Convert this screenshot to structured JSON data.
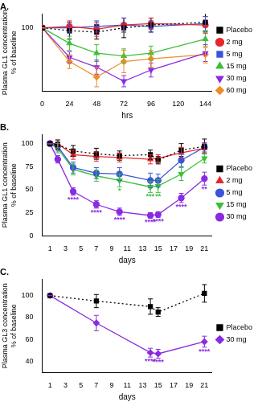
{
  "chart_data": [
    {
      "type": "line",
      "title": "A.",
      "x_label": "hrs",
      "y_label": [
        "Plasma GL1 concentration",
        "% of baseline"
      ],
      "x": [
        0,
        24,
        48,
        72,
        96,
        144
      ],
      "xlim": [
        0,
        150
      ],
      "xticks": [
        0,
        24,
        48,
        72,
        96,
        120,
        144
      ],
      "ylim": [
        55,
        110
      ],
      "yticks": [
        100
      ],
      "grid": false,
      "legend": "right",
      "series": [
        {
          "name": "Placebo",
          "color": "#000000",
          "marker": "square",
          "line_style": "dotted",
          "values": [
            100,
            98,
            97,
            100,
            102,
            104
          ],
          "errors": [
            0,
            6,
            5,
            7,
            5,
            7
          ]
        },
        {
          "name": "2 mg",
          "color": "#e8262c",
          "marker": "circle",
          "line_style": "solid",
          "values": [
            100,
            101,
            99,
            102,
            103,
            102
          ],
          "errors": [
            0,
            4,
            5,
            5,
            4,
            6
          ]
        },
        {
          "name": "5 mg",
          "color": "#3a55d8",
          "marker": "square",
          "line_style": "solid",
          "values": [
            100,
            100,
            101,
            102,
            101,
            103
          ],
          "errors": [
            0,
            4,
            4,
            5,
            4,
            5
          ]
        },
        {
          "name": "15 mg",
          "color": "#3dbf3d",
          "marker": "triangle",
          "line_style": "solid",
          "values": [
            100,
            89,
            82,
            80,
            82,
            92
          ],
          "errors": [
            0,
            5,
            6,
            5,
            5,
            6
          ]
        },
        {
          "name": "30 mg",
          "color": "#8a2be2",
          "marker": "triangle_down",
          "line_style": "solid",
          "values": [
            100,
            79,
            72,
            62,
            70,
            82
          ],
          "errors": [
            0,
            4,
            5,
            4,
            5,
            6
          ]
        },
        {
          "name": "60 mg",
          "color": "#f28c28",
          "marker": "diamond",
          "line_style": "solid",
          "values": [
            100,
            76,
            65,
            76,
            78,
            81
          ],
          "errors": [
            0,
            5,
            7,
            8,
            6,
            6
          ]
        }
      ]
    },
    {
      "type": "line",
      "title": "B.",
      "x_label": "days",
      "y_label": [
        "Plasma GL1 concentration",
        "% of baseline"
      ],
      "x": [
        1,
        2,
        4,
        7,
        10,
        14,
        15,
        18,
        21
      ],
      "xlim": [
        0,
        22
      ],
      "xticks": [
        1,
        3,
        5,
        7,
        9,
        11,
        13,
        15,
        17,
        19,
        21
      ],
      "ylim": [
        0,
        110
      ],
      "yticks": [
        0,
        25,
        50,
        75,
        100
      ],
      "grid": false,
      "legend": "right",
      "series": [
        {
          "name": "Placebo",
          "color": "#000000",
          "marker": "square",
          "line_style": "dotted",
          "values": [
            100,
            99,
            92,
            89,
            87,
            88,
            82,
            93,
            97
          ],
          "errors": [
            0,
            5,
            6,
            6,
            5,
            5,
            4,
            7,
            8
          ]
        },
        {
          "name": "2 mg",
          "color": "#e8262c",
          "marker": "triangle",
          "line_style": "solid",
          "values": [
            100,
            100,
            88,
            86,
            85,
            83,
            84,
            90,
            95
          ],
          "errors": [
            0,
            4,
            5,
            5,
            5,
            5,
            4,
            6,
            5
          ]
        },
        {
          "name": "5 mg",
          "color": "#3a55d8",
          "marker": "circle",
          "line_style": "solid",
          "values": [
            100,
            97,
            74,
            68,
            67,
            60,
            60,
            82,
            96
          ],
          "errors": [
            0,
            5,
            6,
            6,
            7,
            8,
            7,
            7,
            5
          ]
        },
        {
          "name": "15 mg",
          "color": "#3dbf3d",
          "marker": "triangle_down",
          "line_style": "solid",
          "values": [
            100,
            95,
            72,
            65,
            60,
            53,
            54,
            67,
            84
          ],
          "errors": [
            0,
            5,
            6,
            6,
            7,
            6,
            7,
            7,
            5
          ],
          "stars": [
            null,
            null,
            null,
            null,
            "*",
            "***",
            "**",
            null,
            null
          ]
        },
        {
          "name": "30 mg",
          "color": "#8a2be2",
          "marker": "circle",
          "line_style": "solid",
          "values": [
            100,
            83,
            48,
            34,
            26,
            22,
            23,
            41,
            62
          ],
          "errors": [
            0,
            4,
            4,
            4,
            4,
            3,
            3,
            5,
            7
          ],
          "stars": [
            null,
            null,
            "****",
            "****",
            "****",
            "****",
            "****",
            "****",
            "**"
          ]
        }
      ]
    },
    {
      "type": "line",
      "title": "C.",
      "x_label": "days",
      "y_label": [
        "Plasma GL3 concentration",
        "% of baseline"
      ],
      "x": [
        1,
        7,
        14,
        15,
        21
      ],
      "xlim": [
        0,
        22
      ],
      "xticks": [
        1,
        3,
        5,
        7,
        9,
        11,
        13,
        15,
        17,
        19,
        21
      ],
      "ylim": [
        30,
        115
      ],
      "yticks": [
        40,
        60,
        80,
        100
      ],
      "grid": false,
      "legend": "right",
      "series": [
        {
          "name": "Placebo",
          "color": "#000000",
          "marker": "square",
          "line_style": "dotted",
          "values": [
            100,
            95,
            90,
            85,
            102
          ],
          "errors": [
            0,
            6,
            7,
            4,
            8
          ]
        },
        {
          "name": "30 mg",
          "color": "#8a2be2",
          "marker": "diamond",
          "line_style": "solid",
          "values": [
            100,
            75,
            48,
            47,
            58
          ],
          "errors": [
            0,
            7,
            4,
            4,
            5
          ],
          "stars": [
            null,
            null,
            "****",
            "****",
            "****"
          ]
        }
      ]
    }
  ]
}
